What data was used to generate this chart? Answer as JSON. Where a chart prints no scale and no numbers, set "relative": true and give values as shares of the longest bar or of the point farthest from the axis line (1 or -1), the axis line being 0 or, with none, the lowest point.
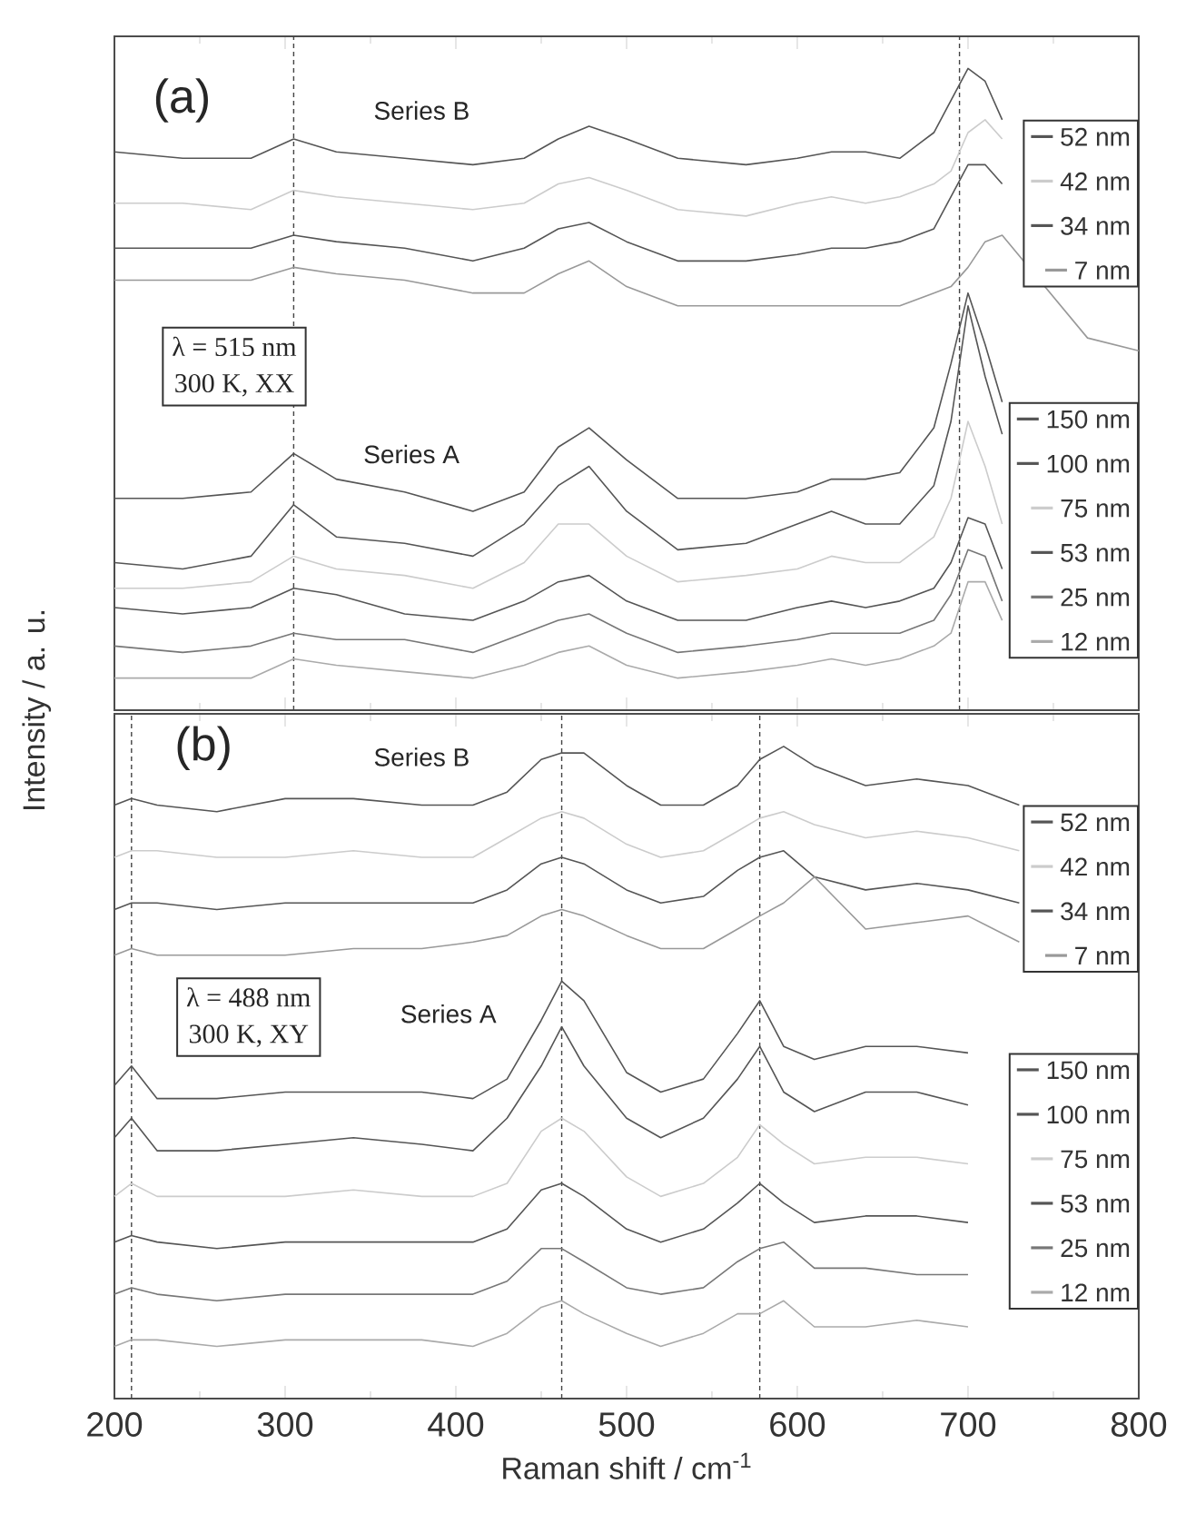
{
  "chart_data": [
    {
      "type": "line",
      "relative": true,
      "ylabel": "Intensity / a. u.",
      "tick_labels": false,
      "legend": "right",
      "x": [
        200,
        240,
        280,
        305,
        330,
        370,
        410,
        440,
        460,
        478,
        500,
        530,
        570,
        600,
        620,
        640,
        660,
        680,
        690,
        700,
        710,
        720,
        770,
        800
      ],
      "xlim": [
        200,
        800
      ],
      "xticks": [
        200,
        300,
        400,
        500,
        600,
        700,
        800
      ],
      "annotations": [
        "(a)",
        "Series B",
        "Series A",
        "λ = 515 nm",
        "300 K, XX"
      ],
      "ref_lines": [
        {
          "axis": "x",
          "value": 305,
          "line_style": "dashed",
          "color": "#444444"
        },
        {
          "axis": "x",
          "value": 695,
          "line_style": "dashed",
          "color": "#444444"
        }
      ],
      "series": [
        {
          "name": "52 nm",
          "color": "#555555",
          "values": [
            0.87,
            0.86,
            0.86,
            0.89,
            0.87,
            0.86,
            0.85,
            0.86,
            0.89,
            0.91,
            0.89,
            0.86,
            0.85,
            0.86,
            0.87,
            0.87,
            0.86,
            0.9,
            0.95,
            1.0,
            0.98,
            0.92,
            null,
            null
          ]
        },
        {
          "name": "42 nm",
          "color": "#cccccc",
          "values": [
            0.79,
            0.79,
            0.78,
            0.81,
            0.8,
            0.79,
            0.78,
            0.79,
            0.82,
            0.83,
            0.81,
            0.78,
            0.77,
            0.79,
            0.8,
            0.79,
            0.8,
            0.82,
            0.84,
            0.9,
            0.92,
            0.89,
            null,
            null
          ]
        },
        {
          "name": "34 nm",
          "color": "#555555",
          "values": [
            0.72,
            0.72,
            0.72,
            0.74,
            0.73,
            0.72,
            0.7,
            0.72,
            0.75,
            0.76,
            0.73,
            0.7,
            0.7,
            0.71,
            0.72,
            0.72,
            0.73,
            0.75,
            0.8,
            0.85,
            0.85,
            0.82,
            null,
            null
          ]
        },
        {
          "name": "7 nm",
          "color": "#999999",
          "values": [
            0.67,
            0.67,
            0.67,
            0.69,
            0.68,
            0.67,
            0.65,
            0.65,
            0.68,
            0.7,
            0.66,
            0.63,
            0.63,
            0.63,
            0.63,
            0.63,
            0.63,
            0.65,
            0.66,
            0.69,
            0.73,
            0.74,
            0.58,
            0.56
          ]
        },
        {
          "name": "150 nm",
          "color": "#555555",
          "values": [
            0.33,
            0.33,
            0.34,
            0.4,
            0.36,
            0.34,
            0.31,
            0.34,
            0.41,
            0.44,
            0.39,
            0.33,
            0.33,
            0.34,
            0.36,
            0.36,
            0.37,
            0.44,
            0.54,
            0.65,
            0.57,
            0.48,
            null,
            null
          ]
        },
        {
          "name": "100 nm",
          "color": "#555555",
          "values": [
            0.23,
            0.22,
            0.24,
            0.32,
            0.27,
            0.26,
            0.24,
            0.29,
            0.35,
            0.38,
            0.31,
            0.25,
            0.26,
            0.29,
            0.31,
            0.29,
            0.29,
            0.35,
            0.45,
            0.63,
            0.52,
            0.43,
            null,
            null
          ]
        },
        {
          "name": "75 nm",
          "color": "#cccccc",
          "values": [
            0.19,
            0.19,
            0.2,
            0.24,
            0.22,
            0.21,
            0.19,
            0.23,
            0.29,
            0.29,
            0.24,
            0.2,
            0.21,
            0.22,
            0.24,
            0.23,
            0.23,
            0.27,
            0.33,
            0.45,
            0.38,
            0.29,
            null,
            null
          ]
        },
        {
          "name": "53 nm",
          "color": "#555555",
          "values": [
            0.16,
            0.15,
            0.16,
            0.19,
            0.18,
            0.15,
            0.14,
            0.17,
            0.2,
            0.21,
            0.17,
            0.14,
            0.14,
            0.16,
            0.17,
            0.16,
            0.17,
            0.19,
            0.23,
            0.3,
            0.29,
            0.22,
            null,
            null
          ]
        },
        {
          "name": "25 nm",
          "color": "#777777",
          "values": [
            0.1,
            0.09,
            0.1,
            0.12,
            0.11,
            0.11,
            0.09,
            0.12,
            0.14,
            0.15,
            0.12,
            0.09,
            0.1,
            0.11,
            0.12,
            0.12,
            0.12,
            0.14,
            0.18,
            0.25,
            0.24,
            0.17,
            null,
            null
          ]
        },
        {
          "name": "12 nm",
          "color": "#aaaaaa",
          "values": [
            0.05,
            0.05,
            0.05,
            0.08,
            0.07,
            0.06,
            0.05,
            0.07,
            0.09,
            0.1,
            0.07,
            0.05,
            0.06,
            0.07,
            0.08,
            0.07,
            0.08,
            0.1,
            0.12,
            0.2,
            0.2,
            0.14,
            null,
            null
          ]
        }
      ]
    },
    {
      "type": "line",
      "relative": true,
      "xlabel": "Raman shift / cm$^{-1}$",
      "tick_labels": "x",
      "legend": "right",
      "x": [
        200,
        210,
        225,
        260,
        300,
        340,
        380,
        410,
        430,
        450,
        462,
        475,
        500,
        520,
        545,
        565,
        578,
        592,
        610,
        640,
        670,
        700,
        730
      ],
      "xlim": [
        200,
        800
      ],
      "xticks": [
        200,
        300,
        400,
        500,
        600,
        700,
        800
      ],
      "annotations": [
        "(b)",
        "Series B",
        "Series A",
        "λ = 488 nm",
        "300 K, XY"
      ],
      "ref_lines": [
        {
          "axis": "x",
          "value": 210,
          "line_style": "dashed",
          "color": "#444444"
        },
        {
          "axis": "x",
          "value": 462,
          "line_style": "dashed",
          "color": "#444444"
        },
        {
          "axis": "x",
          "value": 578,
          "line_style": "dashed",
          "color": "#444444"
        }
      ],
      "series": [
        {
          "name": "52 nm",
          "color": "#555555",
          "values": [
            0.91,
            0.92,
            0.91,
            0.9,
            0.92,
            0.92,
            0.91,
            0.91,
            0.93,
            0.98,
            0.99,
            0.99,
            0.94,
            0.91,
            0.91,
            0.94,
            0.98,
            1.0,
            0.97,
            0.94,
            0.95,
            0.94,
            0.91
          ]
        },
        {
          "name": "42 nm",
          "color": "#cccccc",
          "values": [
            0.83,
            0.84,
            0.84,
            0.83,
            0.83,
            0.84,
            0.83,
            0.83,
            0.86,
            0.89,
            0.9,
            0.89,
            0.85,
            0.83,
            0.84,
            0.87,
            0.89,
            0.9,
            0.88,
            0.86,
            0.87,
            0.86,
            0.84
          ]
        },
        {
          "name": "34 nm",
          "color": "#555555",
          "values": [
            0.75,
            0.76,
            0.76,
            0.75,
            0.76,
            0.76,
            0.76,
            0.76,
            0.78,
            0.82,
            0.83,
            0.82,
            0.78,
            0.76,
            0.77,
            0.81,
            0.83,
            0.84,
            0.8,
            0.78,
            0.79,
            0.78,
            0.76
          ]
        },
        {
          "name": "7 nm",
          "color": "#999999",
          "values": [
            0.68,
            0.69,
            0.68,
            0.68,
            0.68,
            0.69,
            0.69,
            0.7,
            0.71,
            0.74,
            0.75,
            0.74,
            0.71,
            0.69,
            0.69,
            0.72,
            0.74,
            0.76,
            0.8,
            0.72,
            0.73,
            0.74,
            0.7
          ]
        },
        {
          "name": "150 nm",
          "color": "#555555",
          "values": [
            0.48,
            0.51,
            0.46,
            0.46,
            0.47,
            0.47,
            0.47,
            0.46,
            0.49,
            0.58,
            0.64,
            0.61,
            0.5,
            0.47,
            0.49,
            0.56,
            0.61,
            0.54,
            0.52,
            0.54,
            0.54,
            0.53,
            null
          ]
        },
        {
          "name": "100 nm",
          "color": "#555555",
          "values": [
            0.4,
            0.43,
            0.38,
            0.38,
            0.39,
            0.4,
            0.39,
            0.38,
            0.43,
            0.51,
            0.57,
            0.51,
            0.43,
            0.4,
            0.43,
            0.49,
            0.54,
            0.47,
            0.44,
            0.47,
            0.47,
            0.45,
            null
          ]
        },
        {
          "name": "75 nm",
          "color": "#cccccc",
          "values": [
            0.31,
            0.33,
            0.31,
            0.31,
            0.31,
            0.32,
            0.31,
            0.31,
            0.33,
            0.41,
            0.43,
            0.41,
            0.34,
            0.31,
            0.33,
            0.37,
            0.42,
            0.39,
            0.36,
            0.37,
            0.37,
            0.36,
            null
          ]
        },
        {
          "name": "53 nm",
          "color": "#555555",
          "values": [
            0.24,
            0.25,
            0.24,
            0.23,
            0.24,
            0.24,
            0.24,
            0.24,
            0.26,
            0.32,
            0.33,
            0.31,
            0.26,
            0.24,
            0.26,
            0.3,
            0.33,
            0.3,
            0.27,
            0.28,
            0.28,
            0.27,
            null
          ]
        },
        {
          "name": "25 nm",
          "color": "#777777",
          "values": [
            0.16,
            0.17,
            0.16,
            0.15,
            0.16,
            0.16,
            0.16,
            0.16,
            0.18,
            0.23,
            0.23,
            0.21,
            0.17,
            0.16,
            0.17,
            0.21,
            0.23,
            0.24,
            0.2,
            0.2,
            0.19,
            0.19,
            null
          ]
        },
        {
          "name": "12 nm",
          "color": "#aaaaaa",
          "values": [
            0.08,
            0.09,
            0.09,
            0.08,
            0.09,
            0.09,
            0.09,
            0.08,
            0.1,
            0.14,
            0.15,
            0.13,
            0.1,
            0.08,
            0.1,
            0.13,
            0.13,
            0.15,
            0.11,
            0.11,
            0.12,
            0.11,
            null
          ]
        }
      ]
    }
  ]
}
